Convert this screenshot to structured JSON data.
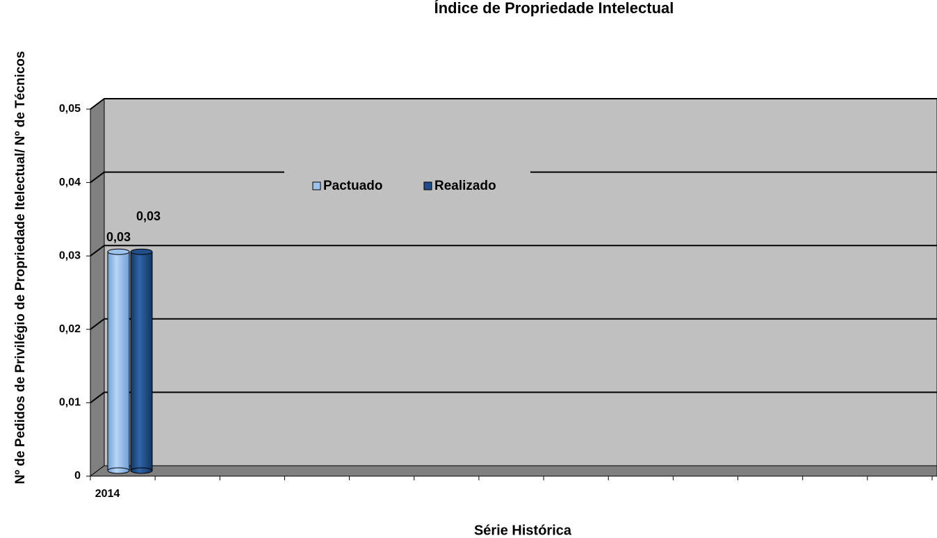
{
  "chart_data": {
    "type": "bar",
    "title": "Índice de Propriedade Intelectual",
    "x_label": "Série Histórica",
    "y_label": "Nº de Pedidos de Privilégio de Propriedade Itelectual/ Nº de Técnicos",
    "categories": [
      "2014",
      null,
      null,
      null,
      null,
      null,
      null,
      null,
      null,
      null,
      null,
      null,
      null
    ],
    "series": [
      {
        "name": "Pactuado",
        "color": "#9cc3ee",
        "values": [
          0.03,
          null,
          null,
          null,
          null,
          null,
          null,
          null,
          null,
          null,
          null,
          null,
          null
        ],
        "value_labels": [
          "0,03",
          null,
          null,
          null,
          null,
          null,
          null,
          null,
          null,
          null,
          null,
          null,
          null
        ]
      },
      {
        "name": "Realizado",
        "color": "#1f4e8a",
        "values": [
          0.03,
          null,
          null,
          null,
          null,
          null,
          null,
          null,
          null,
          null,
          null,
          null,
          null
        ],
        "value_labels": [
          "0,03",
          null,
          null,
          null,
          null,
          null,
          null,
          null,
          null,
          null,
          null,
          null,
          null
        ]
      }
    ],
    "ylim": [
      0,
      0.05
    ],
    "yticks": [
      0,
      {
        "value": 0.01,
        "label": "0,01"
      },
      {
        "value": 0.02,
        "label": "0,02"
      },
      {
        "value": 0.03,
        "label": "0,03"
      },
      {
        "value": 0.04,
        "label": "0,04"
      },
      {
        "value": 0.05,
        "label": "0,05"
      }
    ],
    "grid": true,
    "legend": "top"
  }
}
